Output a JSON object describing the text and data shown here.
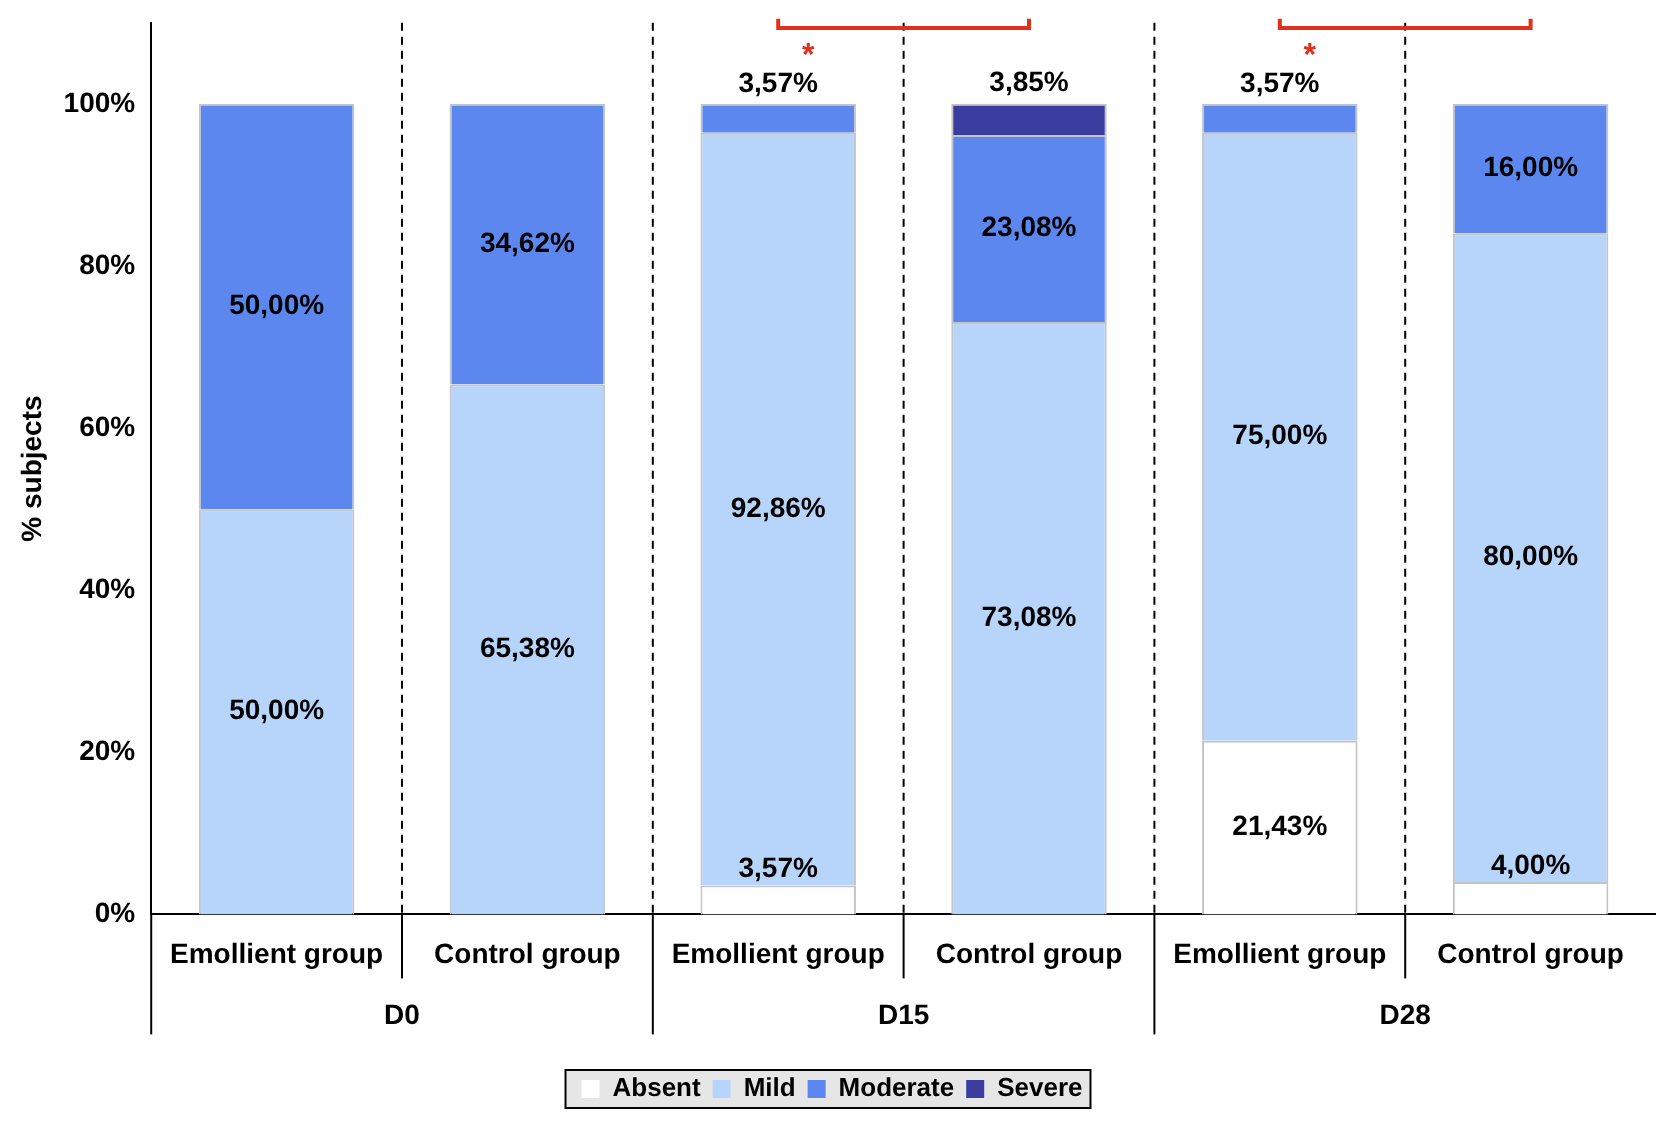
{
  "chart_data": {
    "type": "bar",
    "stacked": true,
    "ylabel": "% subjects",
    "categories": [
      "Emollient group",
      "Control group",
      "Emollient group",
      "Control group",
      "Emollient group",
      "Control group"
    ],
    "series": [
      {
        "name": "Absent",
        "color": "#ffffff",
        "values": [
          0,
          0,
          3.57,
          0,
          21.43,
          4.0
        ],
        "value_labels": [
          null,
          null,
          "3,57%",
          null,
          "21,43%",
          "4,00%"
        ]
      },
      {
        "name": "Mild",
        "color": "#b7d5fb",
        "values": [
          50.0,
          65.38,
          92.86,
          73.08,
          75.0,
          80.0
        ],
        "value_labels": [
          "50,00%",
          "65,38%",
          "92,86%",
          "73,08%",
          "75,00%",
          "80,00%"
        ]
      },
      {
        "name": "Moderate",
        "color": "#5b87ef",
        "values": [
          50.0,
          34.62,
          3.57,
          23.08,
          3.57,
          16.0
        ],
        "value_labels": [
          "50,00%",
          "34,62%",
          "3,57%",
          "23,08%",
          "3,57%",
          "16,00%"
        ]
      },
      {
        "name": "Severe",
        "color": "#3a3d9e",
        "values": [
          0,
          0,
          0,
          3.85,
          0,
          0
        ],
        "value_labels": [
          null,
          null,
          null,
          "3,85%",
          null,
          null
        ]
      }
    ],
    "ylim": [
      0,
      110
    ],
    "yticks": [
      {
        "value": 0,
        "label": "0%"
      },
      {
        "value": 20,
        "label": "20%"
      },
      {
        "value": 40,
        "label": "40%"
      },
      {
        "value": 60,
        "label": "60%"
      },
      {
        "value": 80,
        "label": "80%"
      },
      {
        "value": 100,
        "label": "100%"
      }
    ],
    "grid": false,
    "legend": "bottom",
    "annotations": [
      "D0",
      "D15",
      "D28",
      "*",
      "*"
    ]
  }
}
